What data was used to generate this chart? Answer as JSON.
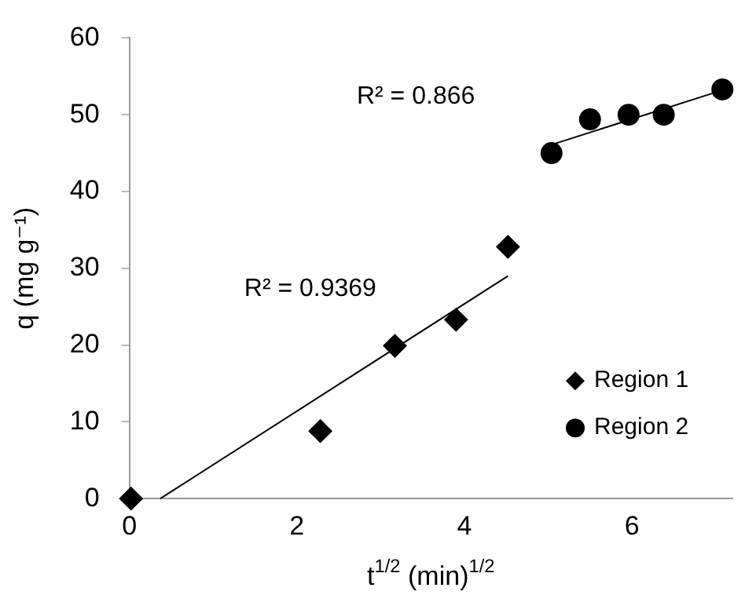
{
  "chart_data": {
    "type": "scatter",
    "xlabel": "t$^{1/2}$ (min)$^{1/2}$",
    "ylabel": "q (mg g⁻¹)",
    "xlim": [
      0,
      7.2
    ],
    "xticks": [
      0,
      2,
      4,
      6
    ],
    "ylim": [
      0,
      60
    ],
    "yticks": [
      0,
      10,
      20,
      30,
      40,
      50,
      60
    ],
    "grid": false,
    "legend": "bottom right",
    "series": [
      {
        "name": "Region 1",
        "type": "scatter",
        "marker": "diamond",
        "color": "#000000",
        "x": [
          0.02,
          2.28,
          3.17,
          3.9,
          4.52
        ],
        "values": [
          0,
          8.8,
          19.9,
          23.3,
          32.8
        ]
      },
      {
        "name": "Region 2",
        "type": "scatter",
        "marker": "circle",
        "color": "#000000",
        "x": [
          5.04,
          5.5,
          5.96,
          6.38,
          7.08
        ],
        "values": [
          45,
          49.4,
          50,
          50,
          53.3
        ]
      },
      {
        "type": "line",
        "marker": "none",
        "color": "#000000",
        "x": [
          0.37,
          4.52
        ],
        "values": [
          0,
          29
        ]
      },
      {
        "type": "line",
        "marker": "none",
        "color": "#000000",
        "x": [
          5.04,
          7.08
        ],
        "values": [
          46.1,
          53.2
        ]
      }
    ],
    "annotations": [
      "R² = 0.9369",
      "R² = 0.866"
    ]
  }
}
